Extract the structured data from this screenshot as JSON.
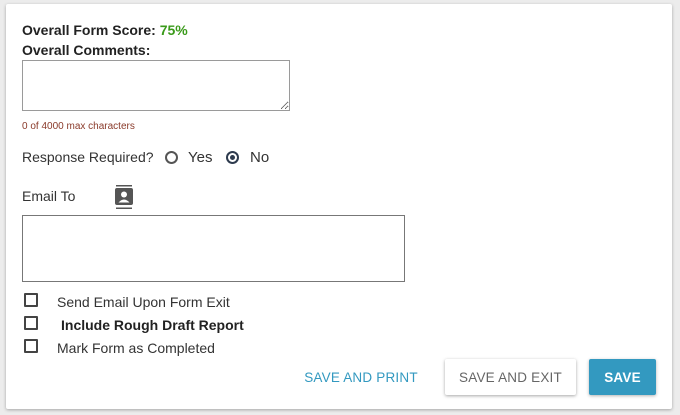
{
  "form": {
    "score_label": "Overall Form Score:",
    "score_value": "75%",
    "comments_label": "Overall Comments:",
    "comments_value": "",
    "char_count": "0 of 4000 max characters",
    "response_required_label": "Response Required?",
    "response_options": [
      "Yes",
      "No"
    ],
    "response_selected": "No",
    "email_to_label": "Email To",
    "email_to_icon": "contact-book-icon",
    "email_to_value": "",
    "checkboxes": [
      {
        "label": "Send Email Upon Form Exit",
        "checked": false
      },
      {
        "label": "Include Rough Draft Report",
        "checked": false
      },
      {
        "label": "Mark Form as Completed",
        "checked": false
      }
    ]
  },
  "buttons": {
    "save_and_print": "SAVE AND PRINT",
    "save_and_exit": "SAVE AND EXIT",
    "save": "SAVE"
  },
  "colors": {
    "accent": "#3399c0",
    "score": "#3a9a1a"
  }
}
